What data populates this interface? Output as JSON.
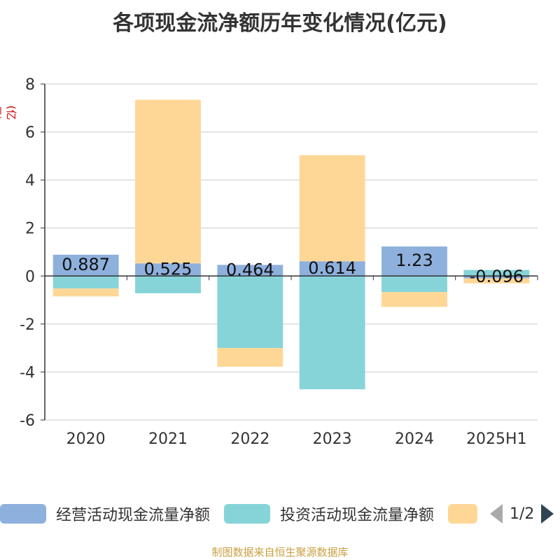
{
  "title": "各项现金流净额历年变化情况(亿元)",
  "unit_label": "(亿元)",
  "source": "制图数据来自恒生聚源数据库",
  "legend": {
    "items": [
      {
        "label": "经营活动现金流量净额",
        "color": "#8eb0dd"
      },
      {
        "label": "投资活动现金流量净额",
        "color": "#86d4d8"
      },
      {
        "label": "",
        "color": "#fed797"
      }
    ],
    "page_text": "1/2"
  },
  "chart_data": {
    "type": "bar",
    "stacked": true,
    "categories": [
      "2020",
      "2021",
      "2022",
      "2023",
      "2024",
      "2025H1"
    ],
    "ylim": [
      -6,
      8
    ],
    "yticks": [
      -6,
      -4,
      -2,
      0,
      2,
      4,
      6,
      8
    ],
    "grid": true,
    "legend_position": "bottom",
    "series": [
      {
        "name": "经营活动现金流量净额",
        "color": "#8eb0dd",
        "values": [
          0.887,
          0.525,
          0.464,
          0.614,
          1.23,
          -0.096
        ],
        "labels": [
          "0.887",
          "0.525",
          "0.464",
          "0.614",
          "1.23",
          "-0.096"
        ]
      },
      {
        "name": "投资活动现金流量净额",
        "color": "#86d4d8",
        "values": [
          -0.52,
          -0.72,
          -3.0,
          -4.72,
          -0.67,
          0.25
        ]
      },
      {
        "name": "",
        "color": "#fed797",
        "values": [
          -0.33,
          6.82,
          -0.78,
          4.42,
          -0.62,
          -0.21
        ]
      }
    ]
  }
}
